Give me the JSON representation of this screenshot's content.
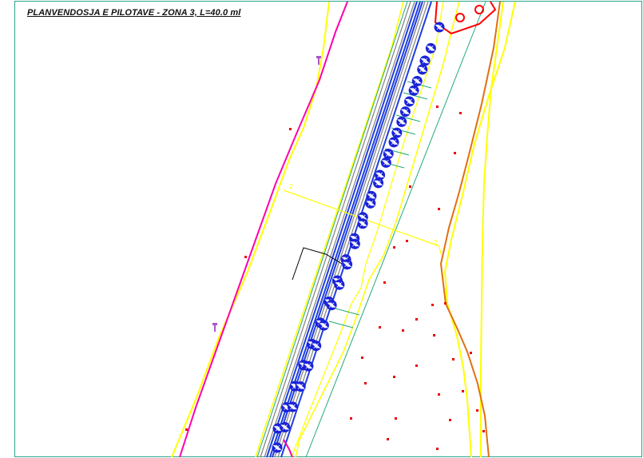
{
  "drawing": {
    "title": "PLANVENDOSJA E PILOTAVE - ZONA 3, L=40.0 ml",
    "section_labels": [
      "2",
      "2"
    ]
  },
  "colors": {
    "frame": "#2aa38a",
    "road_edge": "#ffff00",
    "property_line": "#ff00aa",
    "pipes": "#1f3fe0",
    "pile": "#1a22d8",
    "pile_hatch": "#ffffff",
    "green_line": "#22aa77",
    "orange_line": "#e07010",
    "survey_point": "#ee0000",
    "building": "#ff0000",
    "grey": "#808080"
  },
  "piles": {
    "count": 40,
    "rows": 2
  }
}
